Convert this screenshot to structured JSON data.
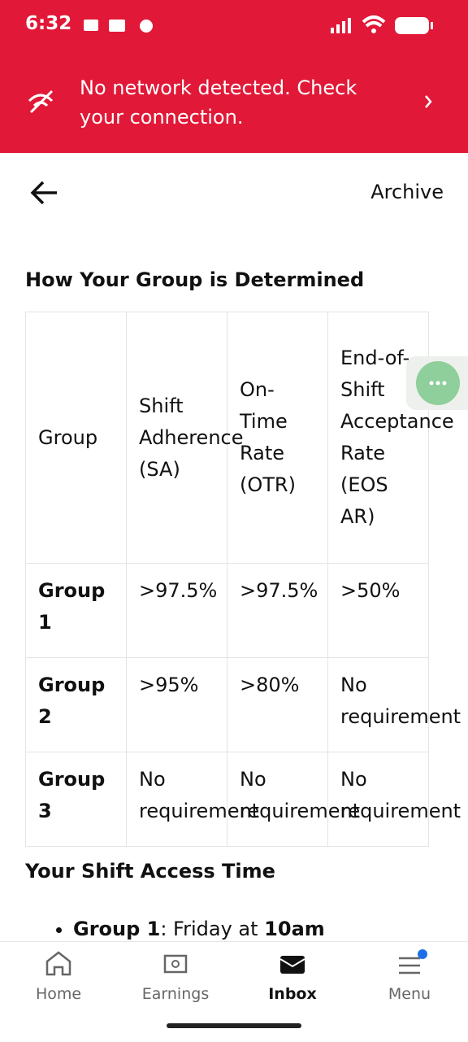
{
  "status_bar": {
    "time": "6:32"
  },
  "banner": {
    "message": "No network detected. Check your connection."
  },
  "header": {
    "action": "Archive"
  },
  "content": {
    "section_title": "How Your Group is Determined",
    "table": {
      "header": [
        "Group",
        "Shift Adherence (SA)",
        "On-Time Rate (OTR)",
        "End-of-Shift Acceptance Rate (EOS AR)"
      ],
      "rows": [
        [
          "Group 1",
          ">97.5%",
          ">97.5%",
          ">50%"
        ],
        [
          "Group 2",
          ">95%",
          ">80%",
          "No requirement"
        ],
        [
          "Group 3",
          "No requirement",
          "No requirement",
          "No requirement"
        ]
      ]
    },
    "section2_title": "Your Shift Access Time",
    "list": [
      {
        "label": "Group 1",
        "text": ": Friday at ",
        "time": "10am"
      }
    ]
  },
  "nav": {
    "items": [
      "Home",
      "Earnings",
      "Inbox",
      "Menu"
    ]
  }
}
